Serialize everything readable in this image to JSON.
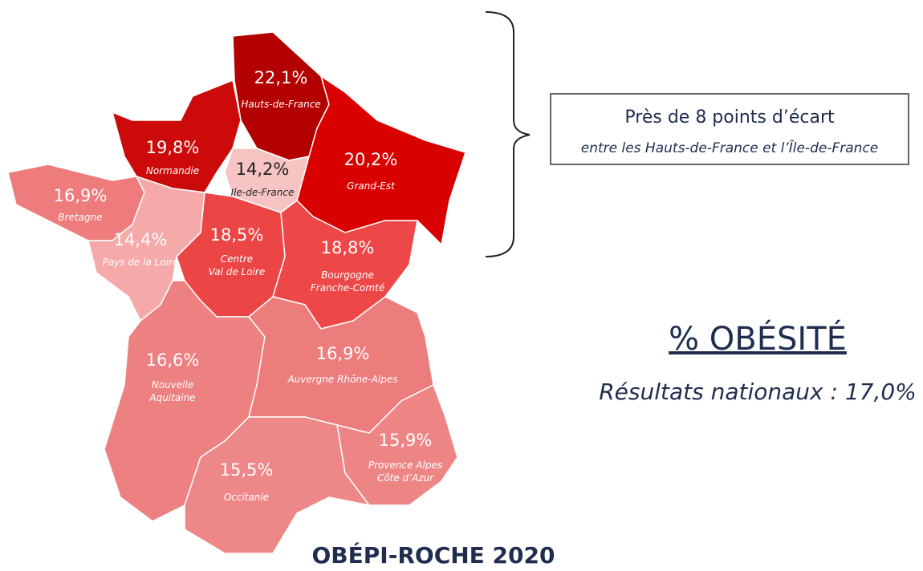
{
  "regions": [
    {
      "name": "Hauts-de-France",
      "label": "22,1%",
      "color": "#b30000"
    },
    {
      "name": "Normandie",
      "label": "19,8%",
      "color": "#cc0a0a"
    },
    {
      "name": "Grand-Est",
      "label": "20,2%",
      "color": "#d90000"
    },
    {
      "name": "Ile-de-France",
      "label": "14,2%",
      "color": "#f7c3c3"
    },
    {
      "name": "Bretagne",
      "label": "16,9%",
      "color": "#ef7c7c"
    },
    {
      "name": "Pays de la Loire",
      "label": "14,4%",
      "color": "#f5a9a9"
    },
    {
      "name": "Centre\nVal de Loire",
      "label": "18,5%",
      "color": "#eb4545"
    },
    {
      "name": "Bourgogne\nFranche-Comté",
      "label": "18,8%",
      "color": "#ee4747"
    },
    {
      "name": "Nouvelle\nAquitaine",
      "label": "16,6%",
      "color": "#ed8080"
    },
    {
      "name": "Auvergne Rhône-Alpes",
      "label": "16,9%",
      "color": "#ed7c7c"
    },
    {
      "name": "Provence Alpes\nCôte d’Azur",
      "label": "15,9%",
      "color": "#ee8585"
    },
    {
      "name": "Occitanie",
      "label": "15,5%",
      "color": "#ee8888"
    }
  ],
  "callout": {
    "title": "Près de 8 points d’écart",
    "subtitle": "entre les Hauts-de-France et l’Île-de-France"
  },
  "heading": {
    "title": "% OBÉSITÉ",
    "subtitle": "Résultats nationaux : 17,0%"
  },
  "footer": "OBÉPI-ROCHE 2020"
}
